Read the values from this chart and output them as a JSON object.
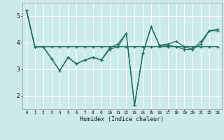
{
  "title": "",
  "xlabel": "Humidex (Indice chaleur)",
  "line_color": "#1a6b5a",
  "bg_color": "#cceaea",
  "grid_color": "#ffffff",
  "x_data": [
    0,
    1,
    2,
    3,
    4,
    5,
    6,
    7,
    8,
    9,
    10,
    11,
    12,
    13,
    14,
    15,
    16,
    17,
    18,
    19,
    20,
    21,
    22,
    23
  ],
  "series1": [
    5.2,
    3.85,
    3.85,
    3.85,
    3.85,
    3.85,
    3.85,
    3.85,
    3.85,
    3.85,
    3.85,
    3.85,
    3.85,
    3.85,
    3.85,
    3.85,
    3.85,
    3.85,
    3.85,
    3.85,
    3.85,
    3.85,
    3.85,
    3.85
  ],
  "series2": [
    5.2,
    3.85,
    3.85,
    3.4,
    2.95,
    3.45,
    3.2,
    3.35,
    3.45,
    3.35,
    3.75,
    3.85,
    4.35,
    1.65,
    3.6,
    4.6,
    3.9,
    3.9,
    3.85,
    3.75,
    3.75,
    3.95,
    4.45,
    4.45
  ],
  "series3": [
    5.2,
    3.85,
    3.85,
    3.4,
    2.95,
    3.45,
    3.2,
    3.35,
    3.45,
    3.35,
    3.8,
    3.95,
    4.35,
    1.65,
    3.6,
    4.6,
    3.9,
    3.95,
    4.05,
    3.85,
    3.75,
    4.05,
    4.45,
    4.5
  ],
  "xlim": [
    -0.5,
    23.5
  ],
  "ylim": [
    1.5,
    5.5
  ],
  "yticks": [
    2,
    3,
    4,
    5
  ],
  "xticks": [
    0,
    1,
    2,
    3,
    4,
    5,
    6,
    7,
    8,
    9,
    10,
    11,
    12,
    13,
    14,
    15,
    16,
    17,
    18,
    19,
    20,
    21,
    22,
    23
  ]
}
